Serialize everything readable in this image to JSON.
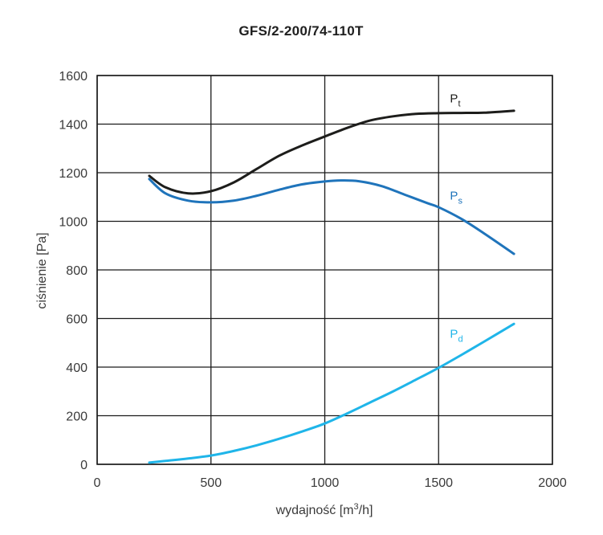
{
  "chart_data": {
    "type": "line",
    "title": "GFS/2-200/74-110T",
    "xlabel": "wydajność [m³/h]",
    "xlabel_main": "wydajność [m",
    "xlabel_sup": "3",
    "xlabel_end": "/h]",
    "ylabel": "ciśnienie [Pa]",
    "xlim": [
      0,
      2000
    ],
    "ylim": [
      0,
      1600
    ],
    "xticks": [
      0,
      500,
      1000,
      1500,
      2000
    ],
    "yticks": [
      0,
      200,
      400,
      600,
      800,
      1000,
      1200,
      1400,
      1600
    ],
    "xtick_labels": [
      "0",
      "500",
      "1000",
      "1500",
      "2000"
    ],
    "ytick_labels": [
      "0",
      "200",
      "400",
      "600",
      "800",
      "1000",
      "1200",
      "1400",
      "1600"
    ],
    "grid": true,
    "series": [
      {
        "name": "Pt",
        "label_main": "P",
        "label_sub": "t",
        "color": "#1d1d1b",
        "label_at": [
          1550,
          1490
        ],
        "x": [
          229,
          300,
          400,
          500,
          600,
          700,
          800,
          900,
          1000,
          1100,
          1200,
          1300,
          1400,
          1500,
          1600,
          1700,
          1831
        ],
        "y": [
          1187,
          1140,
          1115,
          1124,
          1160,
          1215,
          1270,
          1312,
          1349,
          1385,
          1415,
          1432,
          1442,
          1445,
          1446,
          1447,
          1455
        ]
      },
      {
        "name": "Ps",
        "label_main": "P",
        "label_sub": "s",
        "color": "#1f74bb",
        "label_at": [
          1550,
          1090
        ],
        "x": [
          229,
          300,
          400,
          500,
          600,
          700,
          800,
          900,
          1000,
          1070,
          1150,
          1250,
          1350,
          1450,
          1500,
          1600,
          1700,
          1831
        ],
        "y": [
          1174,
          1115,
          1085,
          1078,
          1085,
          1105,
          1130,
          1152,
          1164,
          1168,
          1165,
          1145,
          1110,
          1075,
          1058,
          1010,
          950,
          866
        ]
      },
      {
        "name": "Pd",
        "label_main": "P",
        "label_sub": "d",
        "color": "#1fb5e9",
        "label_at": [
          1550,
          520
        ],
        "x": [
          229,
          300,
          400,
          500,
          600,
          700,
          800,
          900,
          1000,
          1100,
          1200,
          1300,
          1400,
          1500,
          1600,
          1700,
          1831
        ],
        "y": [
          7,
          14,
          24,
          36,
          55,
          78,
          105,
          135,
          168,
          210,
          255,
          300,
          348,
          397,
          450,
          505,
          578
        ]
      }
    ]
  }
}
